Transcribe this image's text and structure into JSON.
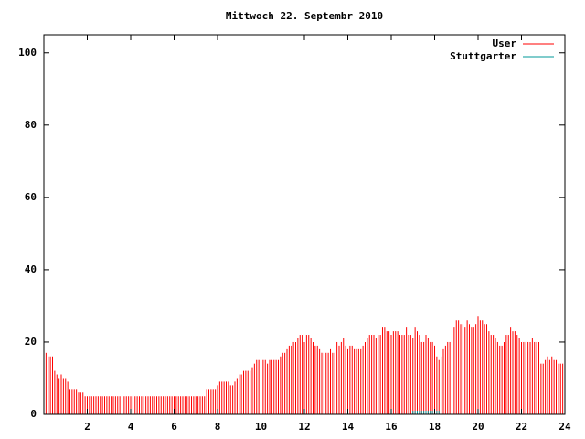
{
  "chart_data": {
    "type": "impulse",
    "title": "Mittwoch 22. Septembr 2010",
    "xlim": [
      0,
      24
    ],
    "xticks": [
      2,
      4,
      6,
      8,
      10,
      12,
      14,
      16,
      18,
      20,
      22,
      24
    ],
    "ylim": [
      0,
      105
    ],
    "yticks": [
      0,
      20,
      40,
      60,
      80,
      100
    ],
    "legend": "top-right",
    "series": [
      {
        "name": "User",
        "color": "#ff0000",
        "x": [
          0,
          0.1,
          0.2,
          0.3,
          0.4,
          0.5,
          0.6,
          0.7,
          0.8,
          0.9,
          1,
          1.1,
          1.2,
          1.3,
          1.4,
          1.5,
          1.6,
          1.7,
          1.8,
          1.9,
          2,
          2.1,
          2.2,
          2.3,
          2.4,
          2.5,
          2.6,
          2.7,
          2.8,
          2.9,
          3,
          3.1,
          3.2,
          3.3,
          3.4,
          3.5,
          3.6,
          3.7,
          3.8,
          3.9,
          4,
          4.1,
          4.2,
          4.3,
          4.4,
          4.5,
          4.6,
          4.7,
          4.8,
          4.9,
          5,
          5.1,
          5.2,
          5.3,
          5.4,
          5.5,
          5.6,
          5.7,
          5.8,
          5.9,
          6,
          6.1,
          6.2,
          6.3,
          6.4,
          6.5,
          6.6,
          6.7,
          6.8,
          6.9,
          7,
          7.1,
          7.2,
          7.3,
          7.4,
          7.5,
          7.6,
          7.7,
          7.8,
          7.9,
          8,
          8.1,
          8.2,
          8.3,
          8.4,
          8.5,
          8.6,
          8.7,
          8.8,
          8.9,
          9,
          9.1,
          9.2,
          9.3,
          9.4,
          9.5,
          9.6,
          9.7,
          9.8,
          9.9,
          10,
          10.1,
          10.2,
          10.3,
          10.4,
          10.5,
          10.6,
          10.7,
          10.8,
          10.9,
          11,
          11.1,
          11.2,
          11.3,
          11.4,
          11.5,
          11.6,
          11.7,
          11.8,
          11.9,
          12,
          12.1,
          12.2,
          12.3,
          12.4,
          12.5,
          12.6,
          12.7,
          12.8,
          12.9,
          13,
          13.1,
          13.2,
          13.3,
          13.4,
          13.5,
          13.6,
          13.7,
          13.8,
          13.9,
          14,
          14.1,
          14.2,
          14.3,
          14.4,
          14.5,
          14.6,
          14.7,
          14.8,
          14.9,
          15,
          15.1,
          15.2,
          15.3,
          15.4,
          15.5,
          15.6,
          15.7,
          15.8,
          15.9,
          16,
          16.1,
          16.2,
          16.3,
          16.4,
          16.5,
          16.6,
          16.7,
          16.8,
          16.9,
          17,
          17.1,
          17.2,
          17.3,
          17.4,
          17.5,
          17.6,
          17.7,
          17.8,
          17.9,
          18,
          18.1,
          18.2,
          18.3,
          18.4,
          18.5,
          18.6,
          18.7,
          18.8,
          18.9,
          19,
          19.1,
          19.2,
          19.3,
          19.4,
          19.5,
          19.6,
          19.7,
          19.8,
          19.9,
          20,
          20.1,
          20.2,
          20.3,
          20.4,
          20.5,
          20.6,
          20.7,
          20.8,
          20.9,
          21,
          21.1,
          21.2,
          21.3,
          21.4,
          21.5,
          21.6,
          21.7,
          21.8,
          21.9,
          22,
          22.1,
          22.2,
          22.3,
          22.4,
          22.5,
          22.6,
          22.7,
          22.8,
          22.9,
          23,
          23.1,
          23.2,
          23.3,
          23.4,
          23.5,
          23.6,
          23.7,
          23.8,
          23.9
        ],
        "values": [
          17,
          17,
          16,
          16,
          16,
          12,
          11,
          10,
          11,
          10,
          10,
          9,
          7,
          7,
          7,
          7,
          6,
          6,
          6,
          5,
          5,
          5,
          5,
          5,
          5,
          5,
          5,
          5,
          5,
          5,
          5,
          5,
          5,
          5,
          5,
          5,
          5,
          5,
          5,
          5,
          5,
          5,
          5,
          5,
          5,
          5,
          5,
          5,
          5,
          5,
          5,
          5,
          5,
          5,
          5,
          5,
          5,
          5,
          5,
          5,
          5,
          5,
          5,
          5,
          5,
          5,
          5,
          5,
          5,
          5,
          5,
          5,
          5,
          5,
          5,
          7,
          7,
          7,
          7,
          7,
          8,
          9,
          9,
          9,
          9,
          9,
          8,
          8,
          9,
          10,
          11,
          11,
          12,
          12,
          12,
          12,
          13,
          14,
          15,
          15,
          15,
          15,
          15,
          14,
          15,
          15,
          15,
          15,
          15,
          16,
          17,
          17,
          18,
          19,
          19,
          20,
          20,
          21,
          22,
          22,
          20,
          22,
          22,
          21,
          20,
          19,
          19,
          18,
          17,
          17,
          17,
          17,
          18,
          17,
          17,
          20,
          19,
          20,
          21,
          19,
          18,
          19,
          19,
          18,
          18,
          18,
          18,
          19,
          20,
          21,
          22,
          22,
          22,
          21,
          22,
          22,
          24,
          24,
          23,
          23,
          22,
          23,
          23,
          23,
          22,
          22,
          22,
          24,
          22,
          22,
          21,
          24,
          23,
          22,
          20,
          20,
          22,
          21,
          20,
          20,
          19,
          16,
          15,
          16,
          18,
          19,
          20,
          20,
          23,
          24,
          26,
          26,
          25,
          25,
          24,
          26,
          25,
          24,
          24,
          25,
          27,
          26,
          26,
          25,
          25,
          23,
          22,
          22,
          21,
          20,
          19,
          19,
          20,
          22,
          22,
          24,
          23,
          23,
          22,
          21,
          20,
          20,
          20,
          20,
          20,
          21,
          20,
          20,
          20,
          14,
          14,
          15,
          16,
          15,
          16,
          15,
          15,
          14,
          14,
          14
        ]
      },
      {
        "name": "Stuttgarter",
        "color": "#009a9a",
        "x": [
          17,
          17.1,
          17.2,
          17.3,
          17.4,
          17.5,
          17.6,
          17.7,
          17.8,
          17.9,
          18,
          18.1,
          18.2
        ],
        "values": [
          1,
          1,
          1,
          1,
          1,
          1,
          1,
          1,
          1,
          1,
          1,
          1,
          1
        ]
      }
    ]
  }
}
